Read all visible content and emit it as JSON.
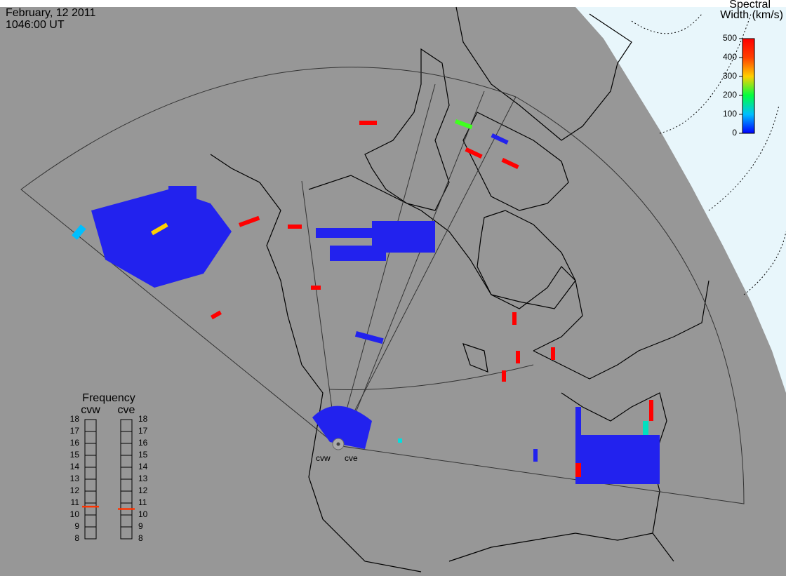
{
  "header": {
    "date": "February, 12 2011",
    "time": "1046:00 UT"
  },
  "colorbar": {
    "title_lines": [
      "Spectral",
      "Width (km/s)"
    ],
    "range": [
      0,
      500
    ],
    "ticks": [
      0,
      100,
      200,
      300,
      400,
      500
    ]
  },
  "frequency": {
    "title": "Frequency",
    "range": [
      8,
      18
    ],
    "ticks": [
      8,
      9,
      10,
      11,
      12,
      13,
      14,
      15,
      16,
      17,
      18
    ],
    "radars": [
      {
        "name": "cvw",
        "value": 10.7
      },
      {
        "name": "cve",
        "value": 10.5
      }
    ]
  },
  "sites": [
    "cvw",
    "cve"
  ]
}
